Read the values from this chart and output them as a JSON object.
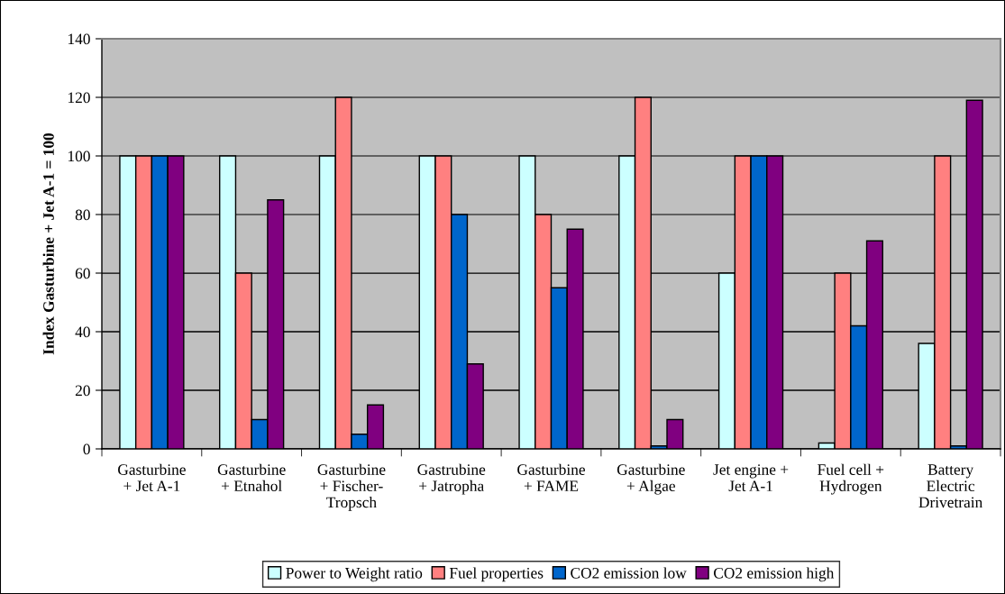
{
  "chart_data": {
    "type": "bar",
    "ylabel": "Index Gasturbine + Jet A-1 = 100",
    "categories": [
      "Gasturbine\n+ Jet A-1",
      "Gasturbine\n+ Etnahol",
      "Gasturbine\n+ Fischer-\nTropsch",
      "Gastrubine\n+ Jatropha",
      "Gasturbine\n+ FAME",
      "Gasturbine\n+ Algae",
      "Jet engine +\nJet A-1",
      "Fuel cell +\nHydrogen",
      "Battery\nElectric\nDrivetrain"
    ],
    "series": [
      {
        "name": "Power to Weight ratio",
        "color": "#ccffff",
        "values": [
          100,
          100,
          100,
          100,
          100,
          100,
          60,
          2,
          36
        ]
      },
      {
        "name": "Fuel properties",
        "color": "#ff8080",
        "values": [
          100,
          60,
          120,
          100,
          80,
          120,
          100,
          60,
          100
        ]
      },
      {
        "name": "CO2 emission low",
        "color": "#0066cc",
        "values": [
          100,
          10,
          5,
          80,
          55,
          1,
          100,
          42,
          1
        ]
      },
      {
        "name": "CO2 emission high",
        "color": "#800080",
        "values": [
          100,
          85,
          15,
          29,
          75,
          10,
          100,
          71,
          119
        ]
      }
    ],
    "ylim": [
      0,
      140
    ],
    "yticks": [
      0,
      20,
      40,
      60,
      80,
      100,
      120,
      140
    ],
    "grid": "y",
    "legend": "bottom"
  }
}
